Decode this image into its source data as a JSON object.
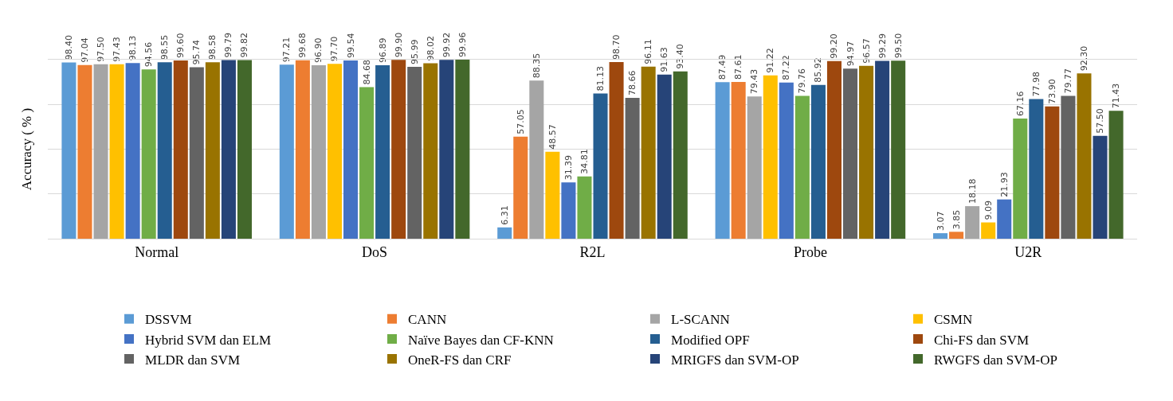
{
  "chart_data": {
    "type": "bar",
    "ylabel": "Accuracy ( % )",
    "categories": [
      "Normal",
      "DoS",
      "R2L",
      "Probe",
      "U2R"
    ],
    "ylim": [
      0,
      100
    ],
    "yticks": [
      {
        "value": 0,
        "label": null
      },
      {
        "value": 25,
        "label": null
      },
      {
        "value": 50,
        "label": null
      },
      {
        "value": 75,
        "label": null
      }
    ],
    "tick_labels": "x",
    "grid": "y",
    "legend": "bottom",
    "series": [
      {
        "name": "DSSVM",
        "color": "#5b9bd5",
        "values": [
          98.4,
          97.21,
          6.31,
          87.49,
          3.07
        ],
        "value_labels": [
          "98.40",
          "97.21",
          "6.31",
          "87.49",
          "3.07"
        ]
      },
      {
        "name": "CANN",
        "color": "#ed7d31",
        "values": [
          97.04,
          99.68,
          57.05,
          87.61,
          3.85
        ],
        "value_labels": [
          "97.04",
          "99.68",
          "57.05",
          "87.61",
          "3.85"
        ]
      },
      {
        "name": "L-SCANN",
        "color": "#a5a5a5",
        "values": [
          97.5,
          96.9,
          88.35,
          79.43,
          18.18
        ],
        "value_labels": [
          "97.50",
          "96.90",
          "88.35",
          "79.43",
          "18.18"
        ]
      },
      {
        "name": "CSMN",
        "color": "#ffc000",
        "values": [
          97.43,
          97.7,
          48.57,
          91.22,
          9.09
        ],
        "value_labels": [
          "97.43",
          "97.70",
          "48.57",
          "91.22",
          "9.09"
        ]
      },
      {
        "name": "Hybrid SVM dan ELM",
        "color": "#4472c4",
        "values": [
          98.13,
          99.54,
          31.39,
          87.22,
          21.93
        ],
        "value_labels": [
          "98.13",
          "99.54",
          "31.39",
          "87.22",
          "21.93"
        ]
      },
      {
        "name": "Naïve Bayes dan CF-KNN",
        "color": "#70ad47",
        "values": [
          94.56,
          84.68,
          34.81,
          79.76,
          67.16
        ],
        "value_labels": [
          "94.56",
          "84.68",
          "34.81",
          "79.76",
          "67.16"
        ]
      },
      {
        "name": "Modified OPF",
        "color": "#255e91",
        "values": [
          98.55,
          96.89,
          81.13,
          85.92,
          77.98
        ],
        "value_labels": [
          "98.55",
          "96.89",
          "81.13",
          "85.92",
          "77.98"
        ]
      },
      {
        "name": "Chi-FS dan SVM",
        "color": "#9e480e",
        "values": [
          99.6,
          99.9,
          98.7,
          99.2,
          73.9
        ],
        "value_labels": [
          "99.60",
          "99.90",
          "98.70",
          "99.20",
          "73.90"
        ]
      },
      {
        "name": "MLDR dan SVM",
        "color": "#636363",
        "values": [
          95.74,
          95.99,
          78.66,
          94.97,
          79.77
        ],
        "value_labels": [
          "95.74",
          "95.99",
          "78.66",
          "94.97",
          "79.77"
        ]
      },
      {
        "name": "OneR-FS dan CRF",
        "color": "#997300",
        "values": [
          98.58,
          98.02,
          96.11,
          96.57,
          92.3
        ],
        "value_labels": [
          "98.58",
          "98.02",
          "96.11",
          "96.57",
          "92.30"
        ]
      },
      {
        "name": "MRIGFS dan SVM-OP",
        "color": "#264478",
        "values": [
          99.79,
          99.92,
          91.63,
          99.29,
          57.5
        ],
        "value_labels": [
          "99.79",
          "99.92",
          "91.63",
          "99.29",
          "57.50"
        ]
      },
      {
        "name": "RWGFS dan SVM-OP",
        "color": "#43682b",
        "values": [
          99.82,
          99.96,
          93.4,
          99.5,
          71.43
        ],
        "value_labels": [
          "99.82",
          "99.96",
          "93.40",
          "99.50",
          "71.43"
        ]
      }
    ]
  }
}
